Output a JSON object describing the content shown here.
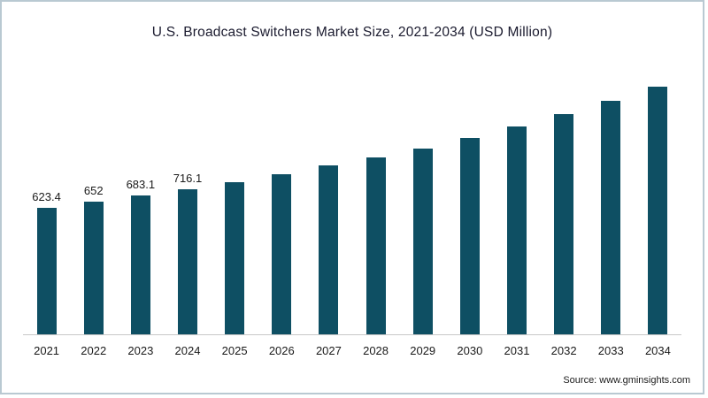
{
  "chart_data": {
    "type": "bar",
    "title": "U.S. Broadcast Switchers Market Size, 2021-2034 (USD Million)",
    "categories": [
      "2021",
      "2022",
      "2023",
      "2024",
      "2025",
      "2026",
      "2027",
      "2028",
      "2029",
      "2030",
      "2031",
      "2032",
      "2033",
      "2034"
    ],
    "values": [
      623.4,
      652,
      683.1,
      716.1,
      751,
      790,
      833,
      870,
      915,
      967,
      1024,
      1085,
      1150,
      1220
    ],
    "data_labels": [
      "623.4",
      "652",
      "683.1",
      "716.1",
      "",
      "",
      "",
      "",
      "",
      "",
      "",
      "",
      "",
      ""
    ],
    "xlabel": "",
    "ylabel": "",
    "ylim": [
      0,
      1350
    ],
    "grid": false,
    "legend": false,
    "bar_color": "#0e4f63"
  },
  "source": {
    "label": "Source: www.gminsights.com"
  },
  "colors": {
    "frame_border": "#b9c9d2",
    "axis_line": "#c7c7c7",
    "text": "#1a1a1a",
    "title_text": "#1a1a2e"
  }
}
